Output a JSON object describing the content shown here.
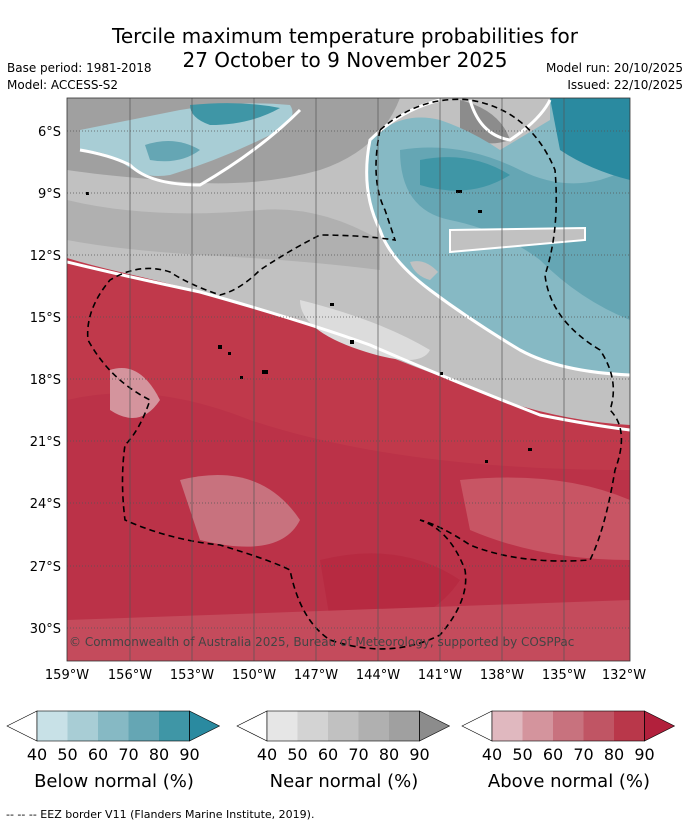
{
  "header": {
    "title_line1": "Tercile maximum temperature probabilities for",
    "title_line2": "27 October to 9 November 2025",
    "base_period": "Base period: 1981-2018",
    "model": "Model: ACCESS-S2",
    "model_run": "Model run: 20/10/2025",
    "issued": "Issued: 22/10/2025"
  },
  "map": {
    "lat_labels": [
      "6°S",
      "9°S",
      "12°S",
      "15°S",
      "18°S",
      "21°S",
      "24°S",
      "27°S",
      "30°S"
    ],
    "lon_labels": [
      "159°W",
      "156°W",
      "153°W",
      "150°W",
      "147°W",
      "144°W",
      "141°W",
      "138°W",
      "135°W",
      "132°W"
    ],
    "copyright": "© Commonwealth of Australia 2025, Bureau of Meteorology, supported by COSPPac"
  },
  "colorbars": [
    {
      "label": "Below normal (%)",
      "ticks": [
        "40",
        "50",
        "60",
        "70",
        "80",
        "90"
      ],
      "colors": [
        "#ffffff",
        "#c8e1e7",
        "#a8cdd5",
        "#86b9c4",
        "#65a6b4",
        "#3f96a6",
        "#2a8aa0"
      ]
    },
    {
      "label": "Near normal (%)",
      "ticks": [
        "40",
        "50",
        "60",
        "70",
        "80",
        "90"
      ],
      "colors": [
        "#ffffff",
        "#e6e6e6",
        "#d3d3d3",
        "#c1c1c1",
        "#b0b0b0",
        "#a0a0a0",
        "#8c8c8c"
      ]
    },
    {
      "label": "Above normal (%)",
      "ticks": [
        "40",
        "50",
        "60",
        "70",
        "80",
        "90"
      ],
      "colors": [
        "#ffffff",
        "#e0b8bf",
        "#d4949d",
        "#c8727e",
        "#c05564",
        "#b9374a",
        "#b2203c"
      ]
    }
  ],
  "footer": "--  --  -- EEZ border V11 (Flanders Marine Institute, 2019)."
}
